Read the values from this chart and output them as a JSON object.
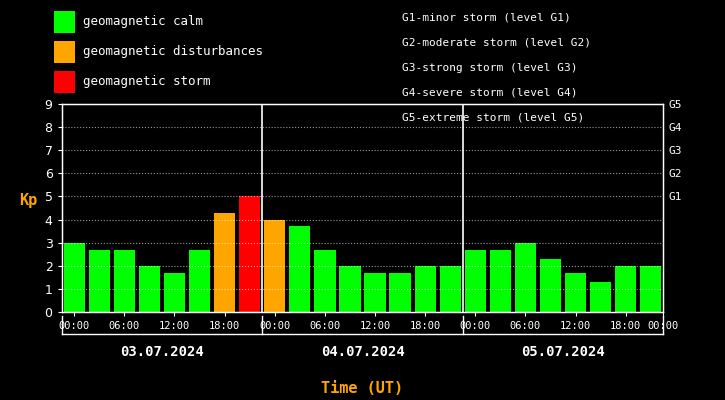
{
  "dates": [
    "03.07.2024",
    "04.07.2024",
    "05.07.2024"
  ],
  "xlabel": "Time (UT)",
  "ylabel": "Kp",
  "kp_values": [
    3.0,
    2.7,
    2.7,
    2.0,
    1.7,
    2.7,
    4.3,
    5.0,
    4.0,
    3.7,
    2.7,
    2.0,
    1.7,
    1.7,
    2.0,
    2.0,
    2.7,
    2.7,
    3.0,
    2.3,
    1.7,
    1.3,
    2.0,
    2.0
  ],
  "ylim": [
    0,
    9
  ],
  "yticks": [
    0,
    1,
    2,
    3,
    4,
    5,
    6,
    7,
    8,
    9
  ],
  "right_labels": [
    "G1",
    "G2",
    "G3",
    "G4",
    "G5"
  ],
  "right_label_values": [
    5,
    6,
    7,
    8,
    9
  ],
  "g_descriptions": [
    "G1-minor storm (level G1)",
    "G2-moderate storm (level G2)",
    "G3-strong storm (level G3)",
    "G4-severe storm (level G4)",
    "G5-extreme storm (level G5)"
  ],
  "legend_items": [
    {
      "label": "geomagnetic calm",
      "color": "#00ff00"
    },
    {
      "label": "geomagnetic disturbances",
      "color": "#ffa500"
    },
    {
      "label": "geomagnetic storm",
      "color": "#ff0000"
    }
  ],
  "color_calm": "#00ff00",
  "color_disturb": "#ffa500",
  "color_storm": "#ff0000",
  "background_color": "#000000",
  "text_color": "#ffffff",
  "axis_color": "#ffffff",
  "date_label_color": "#ffffff",
  "xlabel_color": "#ffa500",
  "ylabel_color": "#ffa500",
  "grid_color": "#ffffff",
  "day_dividers": [
    8,
    16
  ],
  "bar_width": 0.85
}
